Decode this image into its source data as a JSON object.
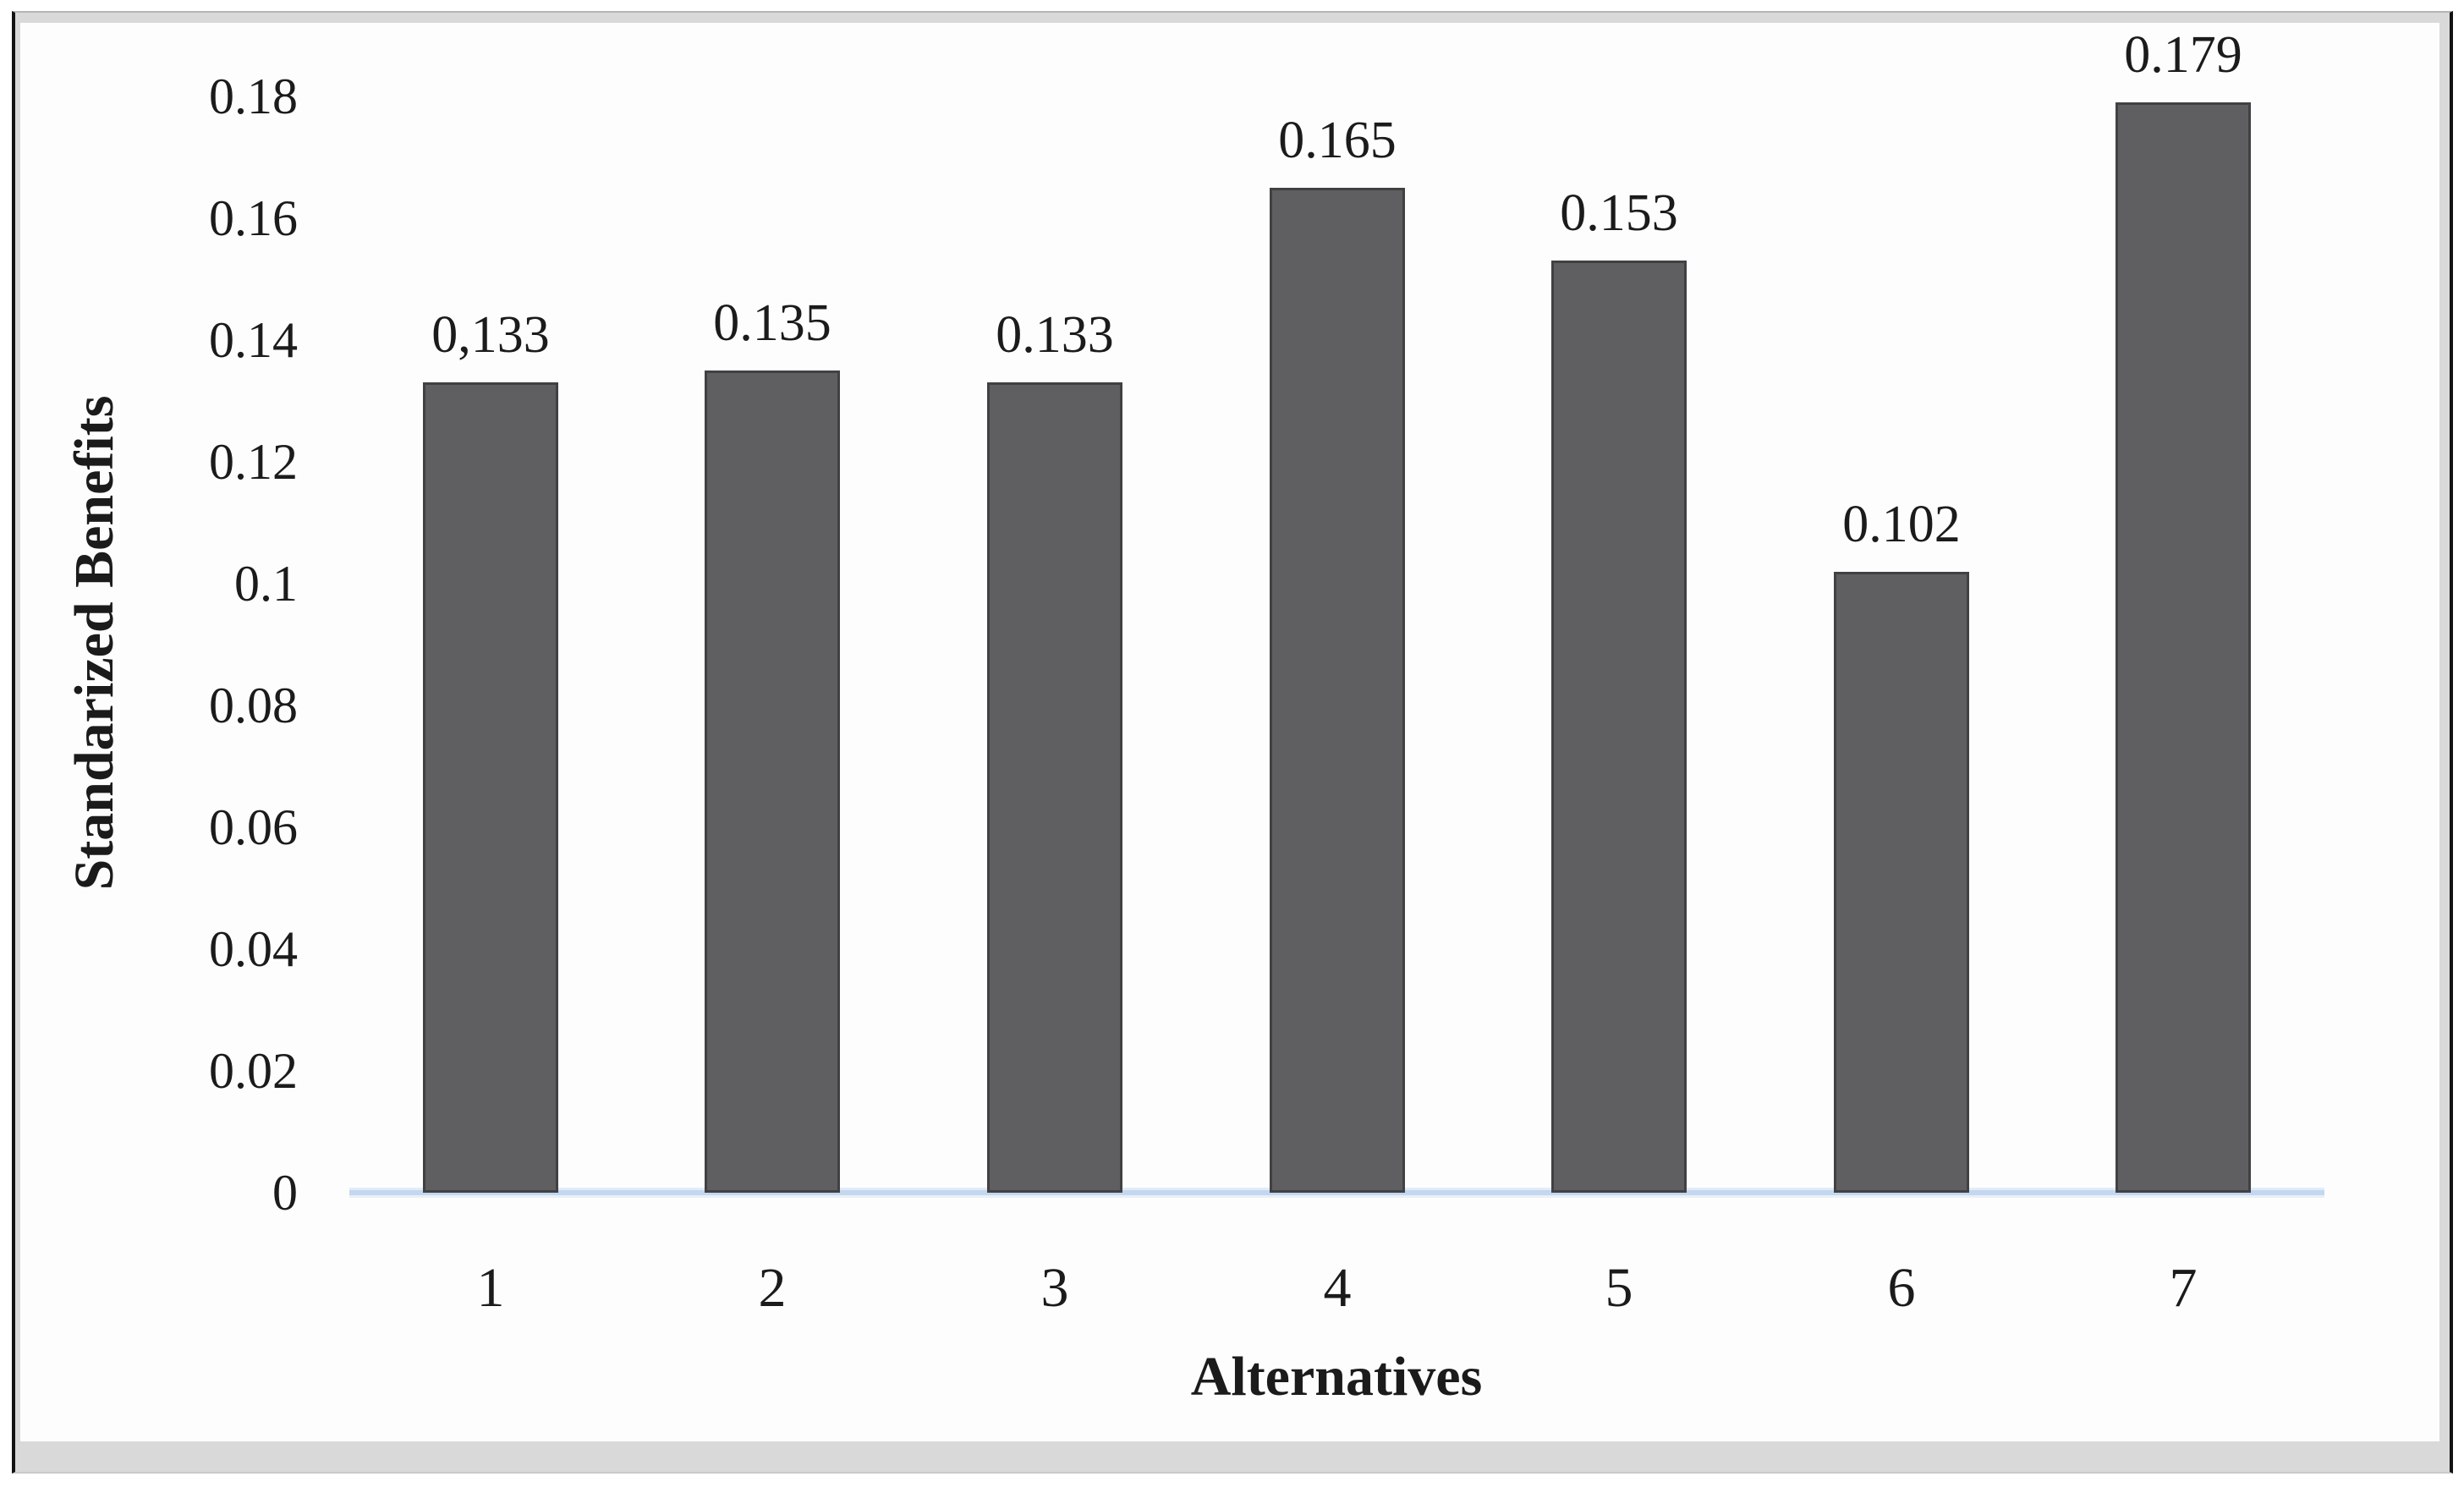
{
  "figure": {
    "y_axis_label": "Standarized Benefits",
    "x_axis_label": "Alternatives",
    "y_ticks": [
      "0.18",
      "0.16",
      "0.14",
      "0.12",
      "0.1",
      "0.08",
      "0.06",
      "0.04",
      "0.02",
      "0"
    ],
    "colors": {
      "bar": "#5f5f61",
      "bar-border": "#414143",
      "axis-line": "#c3d7ef",
      "text": "#1b1b1b",
      "frame-dark": "#121212",
      "matting": "#d9d9d9",
      "panel": "#fdfdfd"
    }
  },
  "chart_data": {
    "type": "bar",
    "title": "",
    "categories": [
      "1",
      "2",
      "3",
      "4",
      "5",
      "6",
      "7"
    ],
    "values": [
      0.133,
      0.135,
      0.133,
      0.165,
      0.153,
      0.102,
      0.179
    ],
    "value_labels": [
      "0,133",
      "0.135",
      "0.133",
      "0.165",
      "0.153",
      "0.102",
      "0.179"
    ],
    "xlabel": "Alternatives",
    "ylabel": "Standarized Benefits",
    "ylim": [
      0,
      0.18
    ],
    "ytick_step": 0.02,
    "grid": false,
    "legend": false,
    "bar_color": "#5f5f61",
    "axis_baseline_color": "#c3d7ef"
  }
}
